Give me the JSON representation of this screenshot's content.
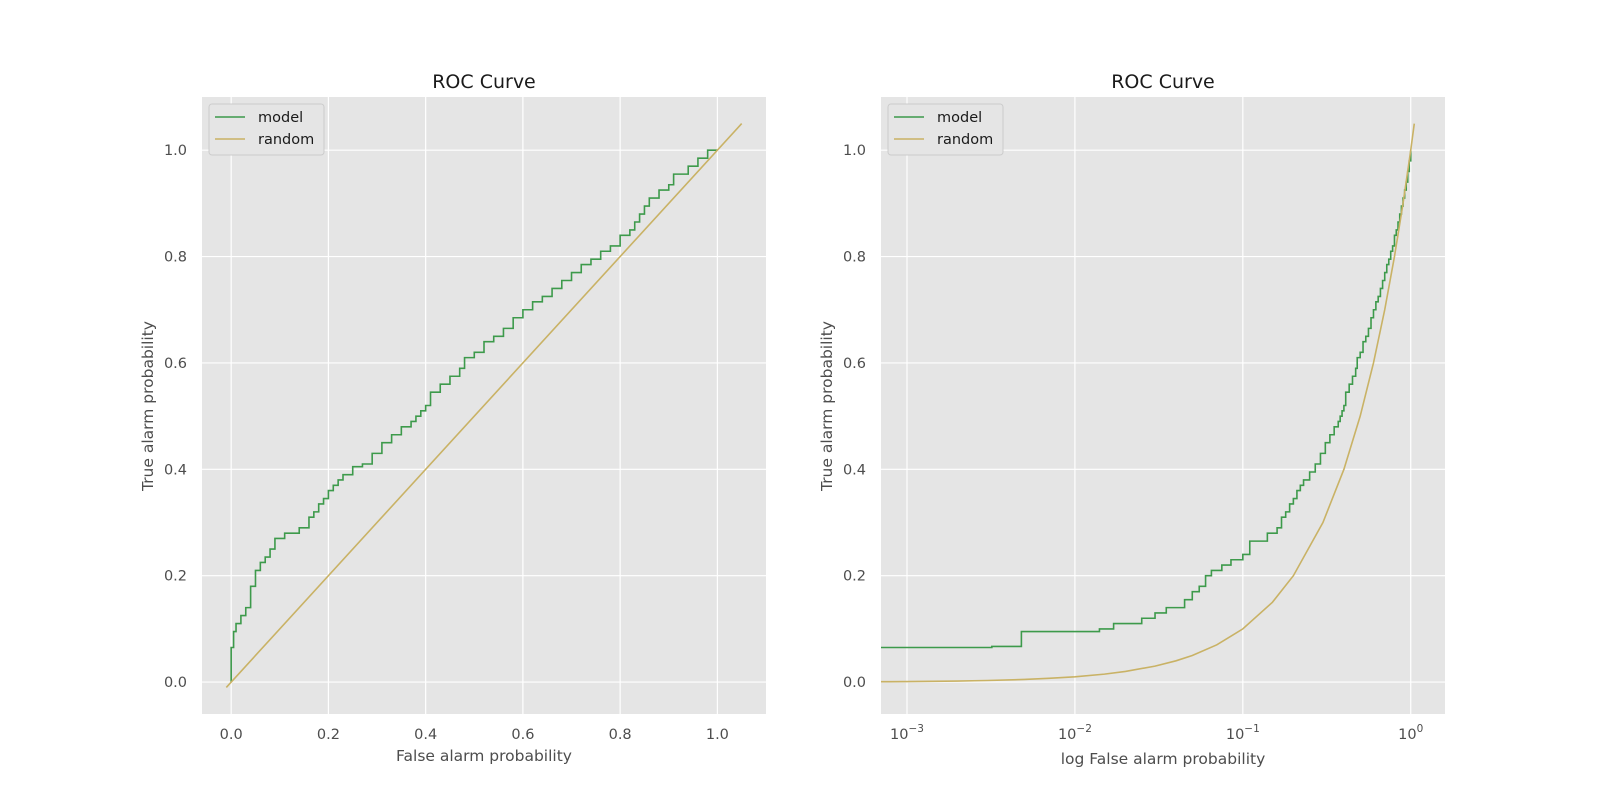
{
  "colors": {
    "model": "#3d9a4b",
    "random": "#c9b265",
    "panel_bg": "#e5e5e5",
    "grid": "#ffffff"
  },
  "chart_data": [
    {
      "type": "line",
      "title": "ROC Curve",
      "xlabel": "False alarm probability",
      "ylabel": "True alarm probability",
      "xscale": "linear",
      "xlim": [
        -0.06,
        1.1
      ],
      "ylim": [
        -0.06,
        1.1
      ],
      "xticks": [
        0.0,
        0.2,
        0.4,
        0.6,
        0.8,
        1.0
      ],
      "xtick_labels": [
        "0.0",
        "0.2",
        "0.4",
        "0.6",
        "0.8",
        "1.0"
      ],
      "yticks": [
        0.0,
        0.2,
        0.4,
        0.6,
        0.8,
        1.0
      ],
      "ytick_labels": [
        "0.0",
        "0.2",
        "0.4",
        "0.6",
        "0.8",
        "1.0"
      ],
      "legend": {
        "position": "top-left",
        "entries": [
          "model",
          "random"
        ]
      },
      "series": [
        {
          "name": "model",
          "step": true,
          "x": [
            0.0,
            0.0,
            0.005,
            0.01,
            0.02,
            0.03,
            0.04,
            0.05,
            0.06,
            0.07,
            0.08,
            0.09,
            0.11,
            0.14,
            0.16,
            0.17,
            0.18,
            0.19,
            0.2,
            0.21,
            0.22,
            0.23,
            0.25,
            0.27,
            0.29,
            0.31,
            0.33,
            0.35,
            0.37,
            0.38,
            0.39,
            0.4,
            0.41,
            0.43,
            0.45,
            0.47,
            0.48,
            0.5,
            0.52,
            0.54,
            0.56,
            0.58,
            0.6,
            0.62,
            0.64,
            0.66,
            0.68,
            0.7,
            0.72,
            0.74,
            0.76,
            0.78,
            0.8,
            0.82,
            0.83,
            0.84,
            0.85,
            0.86,
            0.88,
            0.9,
            0.91,
            0.94,
            0.96,
            0.98,
            1.0
          ],
          "y": [
            0.0,
            0.065,
            0.095,
            0.11,
            0.125,
            0.14,
            0.18,
            0.21,
            0.225,
            0.235,
            0.25,
            0.27,
            0.28,
            0.29,
            0.31,
            0.32,
            0.335,
            0.345,
            0.36,
            0.37,
            0.38,
            0.39,
            0.405,
            0.41,
            0.43,
            0.45,
            0.465,
            0.48,
            0.49,
            0.5,
            0.51,
            0.52,
            0.545,
            0.56,
            0.575,
            0.59,
            0.61,
            0.62,
            0.64,
            0.65,
            0.665,
            0.685,
            0.7,
            0.715,
            0.725,
            0.74,
            0.755,
            0.77,
            0.785,
            0.795,
            0.81,
            0.82,
            0.84,
            0.85,
            0.865,
            0.88,
            0.895,
            0.91,
            0.925,
            0.935,
            0.955,
            0.97,
            0.985,
            1.0,
            1.0
          ]
        },
        {
          "name": "random",
          "x": [
            -0.01,
            1.05
          ],
          "y": [
            -0.01,
            1.05
          ]
        }
      ]
    },
    {
      "type": "line",
      "title": "ROC Curve",
      "xlabel": "log False alarm probability",
      "ylabel": "True alarm probability",
      "xscale": "log",
      "xlim": [
        0.0007,
        1.6
      ],
      "ylim": [
        -0.06,
        1.1
      ],
      "xticks": [
        0.001,
        0.01,
        0.1,
        1.0
      ],
      "xtick_labels": [
        [
          "10",
          "−3"
        ],
        [
          "10",
          "−2"
        ],
        [
          "10",
          "−1"
        ],
        [
          "10",
          "0"
        ]
      ],
      "yticks": [
        0.0,
        0.2,
        0.4,
        0.6,
        0.8,
        1.0
      ],
      "ytick_labels": [
        "0.0",
        "0.2",
        "0.4",
        "0.6",
        "0.8",
        "1.0"
      ],
      "legend": {
        "position": "top-left",
        "entries": [
          "model",
          "random"
        ]
      },
      "series": [
        {
          "name": "model",
          "step": true,
          "x": [
            0.0007,
            0.0032,
            0.0048,
            0.014,
            0.017,
            0.025,
            0.03,
            0.035,
            0.045,
            0.05,
            0.055,
            0.06,
            0.065,
            0.075,
            0.085,
            0.1,
            0.11,
            0.14,
            0.16,
            0.17,
            0.18,
            0.19,
            0.2,
            0.21,
            0.22,
            0.23,
            0.25,
            0.27,
            0.29,
            0.31,
            0.33,
            0.35,
            0.37,
            0.38,
            0.39,
            0.4,
            0.41,
            0.43,
            0.45,
            0.47,
            0.48,
            0.5,
            0.52,
            0.54,
            0.56,
            0.58,
            0.6,
            0.62,
            0.64,
            0.66,
            0.68,
            0.7,
            0.72,
            0.74,
            0.76,
            0.78,
            0.8,
            0.82,
            0.84,
            0.86,
            0.88,
            0.9,
            0.92,
            0.94,
            0.96,
            0.98,
            1.0
          ],
          "y": [
            0.065,
            0.067,
            0.095,
            0.1,
            0.11,
            0.12,
            0.13,
            0.14,
            0.155,
            0.17,
            0.18,
            0.2,
            0.21,
            0.22,
            0.23,
            0.24,
            0.265,
            0.28,
            0.29,
            0.31,
            0.32,
            0.335,
            0.345,
            0.36,
            0.37,
            0.38,
            0.395,
            0.41,
            0.43,
            0.45,
            0.465,
            0.48,
            0.49,
            0.5,
            0.51,
            0.52,
            0.545,
            0.56,
            0.575,
            0.59,
            0.61,
            0.62,
            0.64,
            0.65,
            0.665,
            0.685,
            0.7,
            0.715,
            0.725,
            0.74,
            0.755,
            0.77,
            0.785,
            0.795,
            0.81,
            0.82,
            0.84,
            0.85,
            0.865,
            0.88,
            0.895,
            0.91,
            0.925,
            0.94,
            0.96,
            0.98,
            1.0
          ]
        },
        {
          "name": "random",
          "curve": "y = x",
          "x": [
            0.0007,
            0.001,
            0.002,
            0.003,
            0.005,
            0.007,
            0.01,
            0.015,
            0.02,
            0.03,
            0.04,
            0.05,
            0.07,
            0.1,
            0.15,
            0.2,
            0.3,
            0.4,
            0.5,
            0.6,
            0.7,
            0.8,
            0.9,
            1.0,
            1.05
          ],
          "y": [
            0.0007,
            0.001,
            0.002,
            0.003,
            0.005,
            0.007,
            0.01,
            0.015,
            0.02,
            0.03,
            0.04,
            0.05,
            0.07,
            0.1,
            0.15,
            0.2,
            0.3,
            0.4,
            0.5,
            0.6,
            0.7,
            0.8,
            0.9,
            1.0,
            1.05
          ]
        }
      ]
    }
  ]
}
